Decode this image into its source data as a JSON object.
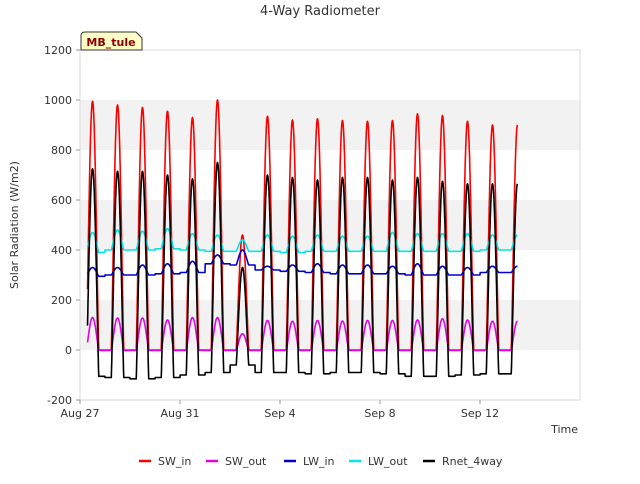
{
  "chart_data": {
    "type": "line",
    "title": "4-Way Radiometer",
    "xlabel": "Time",
    "ylabel": "Solar Radiation (W/m2)",
    "ylim": [
      -200,
      1200
    ],
    "yticks": [
      -200,
      0,
      200,
      400,
      600,
      800,
      1000,
      1200
    ],
    "xlim_day": [
      0,
      20
    ],
    "xticks": [
      {
        "label": "Aug 27",
        "day": 0
      },
      {
        "label": "Aug 31",
        "day": 4
      },
      {
        "label": "Sep 4",
        "day": 8
      },
      {
        "label": "Sep 8",
        "day": 12
      },
      {
        "label": "Sep 12",
        "day": 16
      }
    ],
    "grid": "horizontal alternating bands",
    "legend_position": "bottom",
    "site_label": "MB_tule",
    "day_start": "Aug 27",
    "data_start_day": 0.3,
    "data_end_day": 17.5,
    "series": [
      {
        "name": "SW_in",
        "color": "#ff0000",
        "night_value": 0,
        "daily_peaks": [
          995,
          980,
          970,
          955,
          930,
          1000,
          460,
          935,
          920,
          925,
          918,
          915,
          918,
          945,
          938,
          915,
          900
        ]
      },
      {
        "name": "SW_out",
        "color": "#e600e6",
        "night_value": -2,
        "daily_peaks": [
          130,
          128,
          128,
          120,
          130,
          130,
          65,
          118,
          115,
          118,
          116,
          118,
          118,
          120,
          125,
          120,
          115
        ]
      },
      {
        "name": "LW_in",
        "color": "#0000cc",
        "night_min": [
          295,
          300,
          300,
          305,
          310,
          345,
          340,
          320,
          315,
          310,
          305,
          305,
          305,
          300,
          300,
          300,
          310
        ],
        "daily_peaks": [
          330,
          330,
          340,
          345,
          355,
          380,
          400,
          335,
          340,
          345,
          340,
          340,
          335,
          345,
          335,
          330,
          335
        ]
      },
      {
        "name": "LW_out",
        "color": "#00e5e5",
        "night_min": [
          390,
          400,
          400,
          405,
          400,
          395,
          395,
          395,
          390,
          395,
          395,
          395,
          395,
          395,
          395,
          395,
          400
        ],
        "daily_peaks": [
          470,
          480,
          475,
          485,
          465,
          460,
          440,
          460,
          455,
          460,
          455,
          455,
          470,
          465,
          465,
          465,
          460
        ]
      },
      {
        "name": "Rnet_4way",
        "color": "#000000",
        "night_min": [
          -105,
          -110,
          -115,
          -110,
          -100,
          -90,
          -60,
          -90,
          -90,
          -95,
          -90,
          -90,
          -95,
          -105,
          -105,
          -100,
          -95
        ],
        "daily_peaks": [
          725,
          715,
          715,
          700,
          685,
          750,
          330,
          700,
          690,
          680,
          690,
          690,
          680,
          690,
          675,
          665,
          665
        ]
      }
    ]
  }
}
